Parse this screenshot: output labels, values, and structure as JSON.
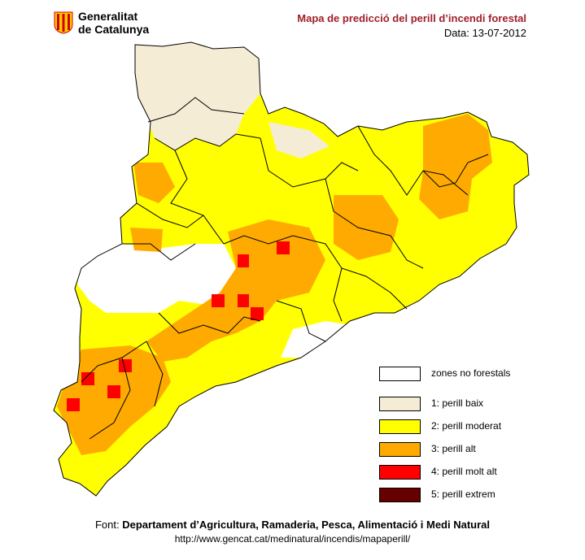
{
  "header": {
    "org_line1": "Generalitat",
    "org_line2": "de Catalunya",
    "title": "Mapa de predicció del perill d’incendi forestal",
    "date": "Data: 13-07-2012"
  },
  "legend": [
    {
      "label": "zones no forestals",
      "color": "#ffffff"
    },
    {
      "label": "1: perill baix",
      "color": "#f5ecd5"
    },
    {
      "label": "2: perill moderat",
      "color": "#ffff00"
    },
    {
      "label": "3: perill alt",
      "color": "#ffaa00"
    },
    {
      "label": "4: perill molt alt",
      "color": "#ff0000"
    },
    {
      "label": "5: perill extrem",
      "color": "#660000"
    }
  ],
  "footer": {
    "source_prefix": "Font:",
    "source_name": "Departament d’Agricultura, Ramaderia, Pesca, Alimentació i Medi Natural",
    "url": "http://www.gencat.cat/medinatural/incendis/mapaperill/"
  },
  "colors": {
    "title": "#a0202a",
    "low": "#f5ecd5",
    "moderate": "#ffff00",
    "high": "#ffaa00",
    "very_high": "#ff0000",
    "extreme": "#660000"
  }
}
